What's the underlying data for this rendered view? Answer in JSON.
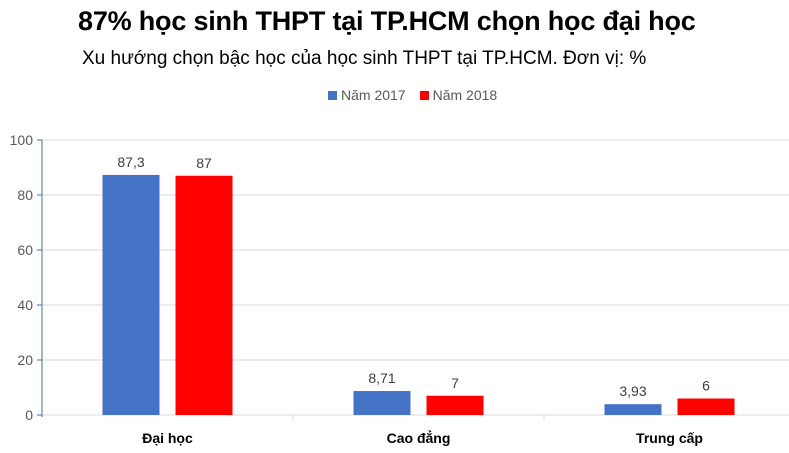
{
  "header": {
    "title": "87% học sinh THPT tại TP.HCM chọn học đại học",
    "subtitle": "Xu hướng chọn bậc học của học sinh THPT tại TP.HCM. Đơn vị: %"
  },
  "legend": [
    {
      "label": "Năm 2017",
      "color": "#4472C4"
    },
    {
      "label": "Năm 2018",
      "color": "#FF0000"
    }
  ],
  "chart_data": {
    "type": "bar",
    "title": "87% học sinh THPT tại TP.HCM chọn học đại học",
    "subtitle": "Xu hướng chọn bậc học của học sinh THPT tại TP.HCM. Đơn vị: %",
    "categories": [
      "Đại học",
      "Cao đẳng",
      "Trung cấp"
    ],
    "series": [
      {
        "name": "Năm 2017",
        "values": [
          87.3,
          8.71,
          3.93
        ],
        "labels": [
          "87,3",
          "8,71",
          "3,93"
        ],
        "color": "#4472C4"
      },
      {
        "name": "Năm 2018",
        "values": [
          87,
          7,
          6
        ],
        "labels": [
          "87",
          "7",
          "6"
        ],
        "color": "#FF0000"
      }
    ],
    "xlabel": "",
    "ylabel": "",
    "ylim": [
      0,
      100
    ],
    "yticks": [
      0,
      20,
      40,
      60,
      80,
      100
    ],
    "grid": true,
    "legend_position": "top"
  }
}
